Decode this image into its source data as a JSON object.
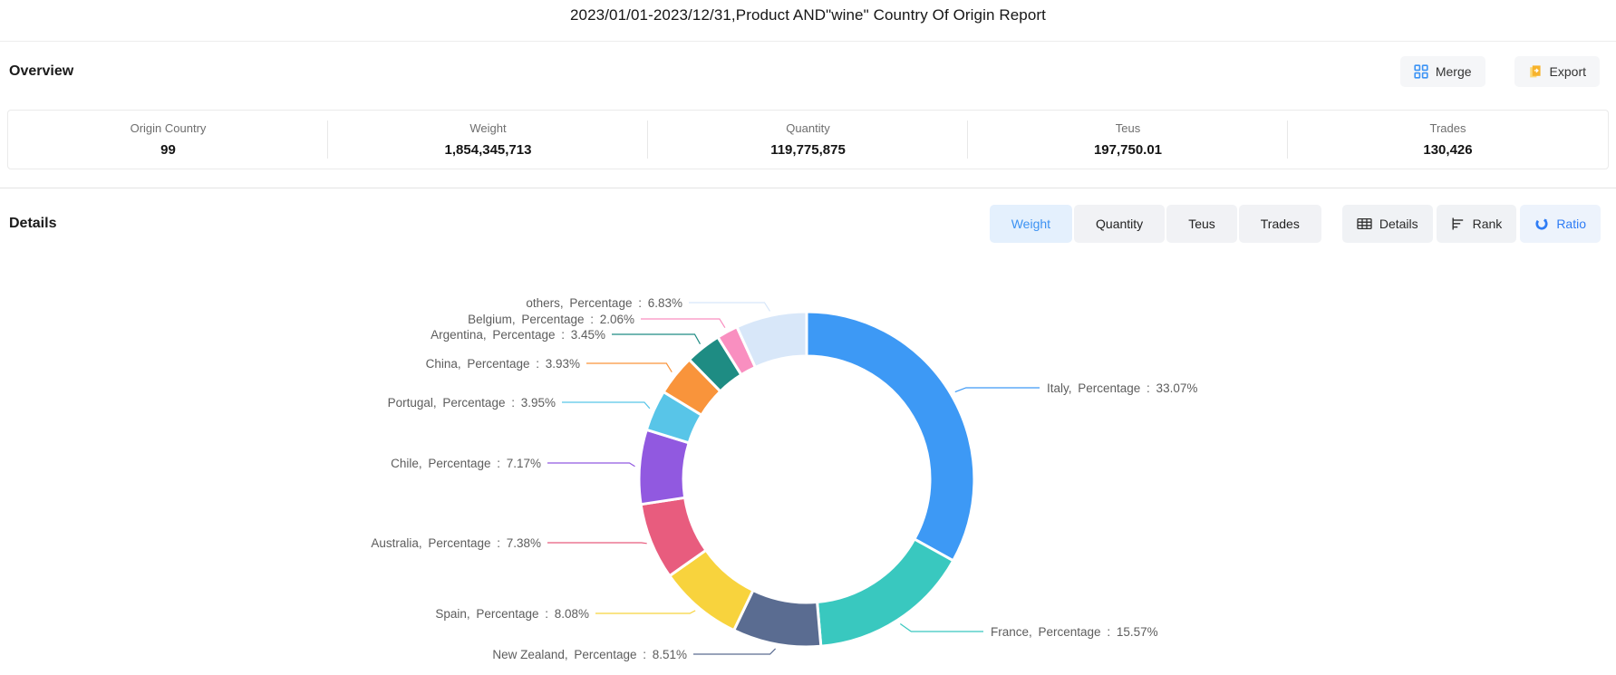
{
  "header": {
    "title": "2023/01/01-2023/12/31,Product AND\"wine\" Country Of Origin Report"
  },
  "overview": {
    "heading": "Overview",
    "merge_label": "Merge",
    "export_label": "Export",
    "stats": [
      {
        "label": "Origin Country",
        "value": "99"
      },
      {
        "label": "Weight",
        "value": "1,854,345,713"
      },
      {
        "label": "Quantity",
        "value": "119,775,875"
      },
      {
        "label": "Teus",
        "value": "197,750.01"
      },
      {
        "label": "Trades",
        "value": "130,426"
      }
    ]
  },
  "details": {
    "heading": "Details",
    "tabs": [
      {
        "label": "Weight",
        "active": true
      },
      {
        "label": "Quantity",
        "active": false
      },
      {
        "label": "Teus",
        "active": false
      },
      {
        "label": "Trades",
        "active": false
      }
    ],
    "view_buttons": [
      {
        "label": "Details",
        "icon": "table-icon",
        "active": false
      },
      {
        "label": "Rank",
        "icon": "rank-icon",
        "active": false
      },
      {
        "label": "Ratio",
        "icon": "ratio-icon",
        "active": true
      }
    ]
  },
  "chart_data": {
    "type": "pie",
    "title": "",
    "legend": "none",
    "donut": true,
    "inner_radius_ratio": 0.735,
    "percentage_label": "Percentage",
    "slices": [
      {
        "name": "Italy",
        "value": 33.07,
        "color": "#3d99f5"
      },
      {
        "name": "France",
        "value": 15.57,
        "color": "#39c8bf"
      },
      {
        "name": "New Zealand",
        "value": 8.51,
        "color": "#5a6c91"
      },
      {
        "name": "Spain",
        "value": 8.08,
        "color": "#f8d33d"
      },
      {
        "name": "Australia",
        "value": 7.38,
        "color": "#e85c7e"
      },
      {
        "name": "Chile",
        "value": 7.17,
        "color": "#9159e0"
      },
      {
        "name": "Portugal",
        "value": 3.95,
        "color": "#58c5e8"
      },
      {
        "name": "China",
        "value": 3.93,
        "color": "#f9943b"
      },
      {
        "name": "Argentina",
        "value": 3.45,
        "color": "#1e8c83"
      },
      {
        "name": "Belgium",
        "value": 2.06,
        "color": "#f98fc0"
      },
      {
        "name": "others",
        "value": 6.83,
        "color": "#d8e7f9"
      }
    ]
  },
  "colors": {
    "accent": "#3d94f5",
    "active_tab_bg": "#e4f0fd",
    "export_icon": "#f7b32c",
    "label_text": "#5d5d5d"
  }
}
